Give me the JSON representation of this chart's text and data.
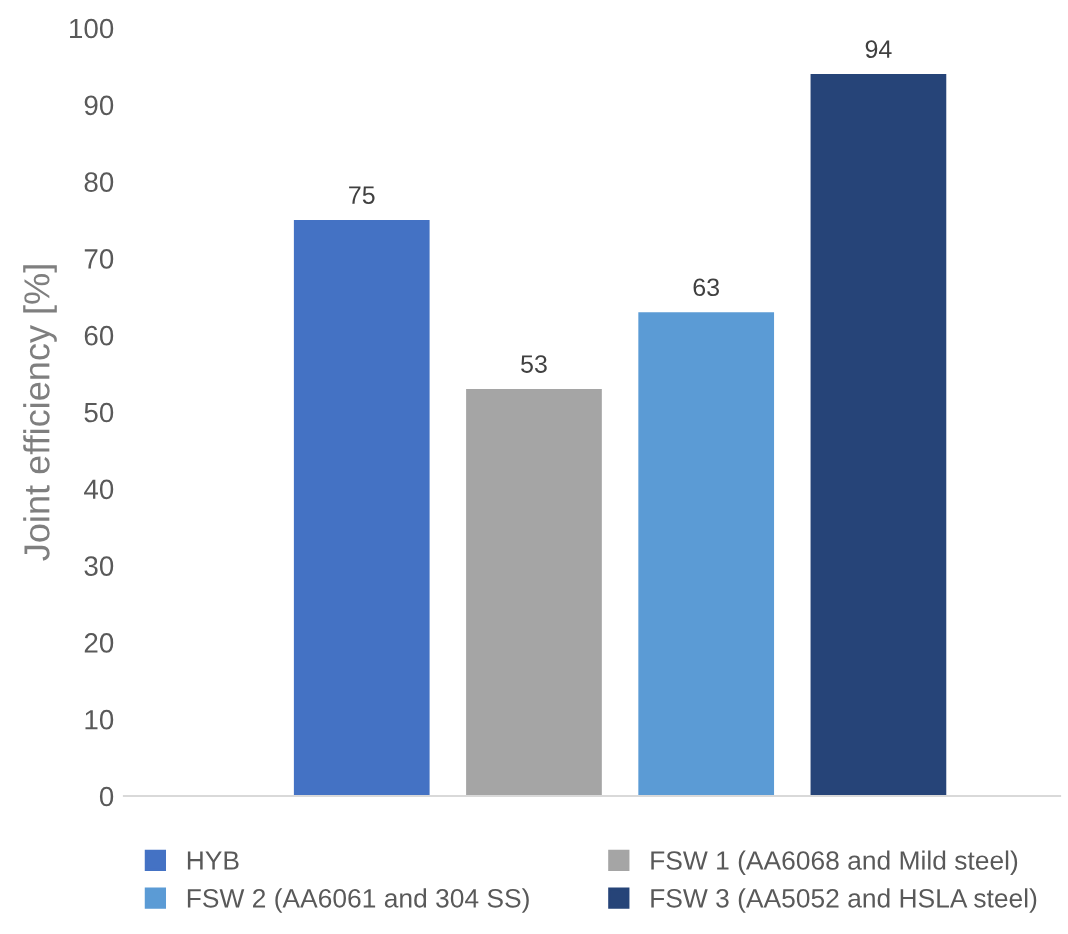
{
  "chart_data": {
    "type": "bar",
    "ylabel": "Joint efficiency [%]",
    "categories": [
      null
    ],
    "series": [
      {
        "name": "HYB",
        "color": "#4472c4",
        "values": [
          75
        ]
      },
      {
        "name": "FSW 1 (AA6068 and Mild steel)",
        "color": "#a5a5a5",
        "values": [
          53
        ]
      },
      {
        "name": "FSW 2 (AA6061 and 304 SS)",
        "color": "#5b9bd5",
        "values": [
          63
        ]
      },
      {
        "name": "FSW 3 (AA5052 and HSLA steel)",
        "color": "#264478",
        "values": [
          94
        ]
      }
    ],
    "ylim": [
      0,
      100
    ],
    "yticks": [
      0,
      10,
      20,
      30,
      40,
      50,
      60,
      70,
      80,
      90,
      100
    ],
    "data_labels": true,
    "grid": false,
    "legend": "bottom"
  }
}
